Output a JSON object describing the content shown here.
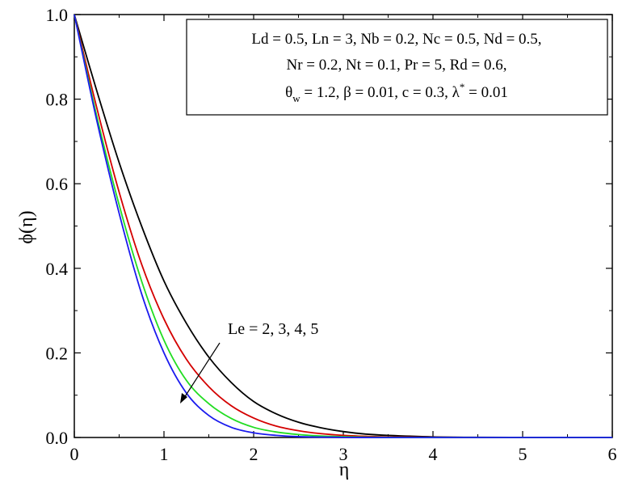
{
  "chart_data": {
    "type": "line",
    "xlabel": "η",
    "ylabel": "ϕ(η)",
    "xlim": [
      0,
      6
    ],
    "ylim": [
      0,
      1.0
    ],
    "x_ticks": [
      "0",
      "1",
      "2",
      "3",
      "4",
      "5",
      "6"
    ],
    "y_ticks": [
      "0.0",
      "0.2",
      "0.4",
      "0.6",
      "0.8",
      "1.0"
    ],
    "grid": false,
    "parameter_box": {
      "line1": "Ld = 0.5, Ln = 3, Nb = 0.2, Nc = 0.5, Nd = 0.5,",
      "line2": "Nr = 0.2, Nt = 0.1, Pr = 5, Rd = 0.6,",
      "line3_theta": "θ",
      "line3_theta_sub": "w",
      "line3_mid": " = 1.2, β = 0.01, c = 0.3, λ",
      "line3_lambda_sup": "*",
      "line3_end": " = 0.01"
    },
    "annotation": "Le = 2, 3, 4, 5",
    "series": [
      {
        "color": "#000000",
        "x": [
          0,
          0.25,
          0.5,
          0.75,
          1.0,
          1.25,
          1.5,
          1.75,
          2.0,
          2.25,
          2.5,
          2.75,
          3.0,
          3.25,
          3.5,
          4.0,
          4.5,
          5.0,
          5.5,
          6.0
        ],
        "values": [
          1.0,
          0.82,
          0.65,
          0.5,
          0.37,
          0.27,
          0.19,
          0.13,
          0.085,
          0.056,
          0.036,
          0.023,
          0.014,
          0.008,
          0.005,
          0.0015,
          0.0004,
          0.0001,
          0.0,
          0.0
        ]
      },
      {
        "color": "#d40000",
        "x": [
          0,
          0.25,
          0.5,
          0.75,
          1.0,
          1.25,
          1.5,
          1.75,
          2.0,
          2.25,
          2.5,
          2.75,
          3.0,
          3.25,
          3.5,
          4.0,
          4.5,
          5.0,
          5.5,
          6.0
        ],
        "values": [
          1.0,
          0.78,
          0.58,
          0.41,
          0.28,
          0.185,
          0.12,
          0.075,
          0.046,
          0.027,
          0.016,
          0.009,
          0.005,
          0.0028,
          0.0015,
          0.0004,
          0.0001,
          0.0,
          0.0,
          0.0
        ]
      },
      {
        "color": "#22dd22",
        "x": [
          0,
          0.25,
          0.5,
          0.75,
          1.0,
          1.25,
          1.5,
          1.75,
          2.0,
          2.25,
          2.5,
          2.75,
          3.0,
          3.25,
          3.5,
          4.0,
          4.5,
          5.0,
          5.5,
          6.0
        ],
        "values": [
          1.0,
          0.76,
          0.55,
          0.37,
          0.23,
          0.135,
          0.08,
          0.045,
          0.024,
          0.013,
          0.007,
          0.0035,
          0.0018,
          0.0009,
          0.0004,
          0.0001,
          0.0,
          0.0,
          0.0,
          0.0
        ]
      },
      {
        "color": "#1a1aee",
        "x": [
          0,
          0.25,
          0.5,
          0.75,
          1.0,
          1.25,
          1.5,
          1.75,
          2.0,
          2.25,
          2.5,
          2.75,
          3.0,
          3.25,
          3.5,
          4.0,
          4.5,
          5.0,
          5.5,
          6.0
        ],
        "values": [
          1.0,
          0.75,
          0.53,
          0.34,
          0.2,
          0.105,
          0.052,
          0.024,
          0.011,
          0.005,
          0.002,
          0.0008,
          0.0003,
          0.0001,
          0.0,
          0.0,
          0.0,
          0.0,
          0.0,
          0.0
        ]
      }
    ]
  }
}
